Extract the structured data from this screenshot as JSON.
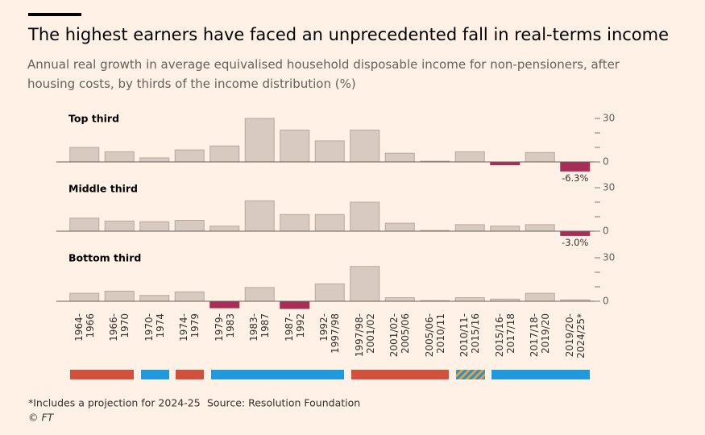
{
  "header": {
    "title": "The highest earners have faced an unprecedented fall in real-terms income",
    "subtitle": "Annual real growth in average equivalised household disposable income for non-pensioners, after housing costs, by thirds of the income distribution (%)"
  },
  "chart_data": [
    {
      "type": "bar",
      "title": "Top third",
      "color": "#d9cac1",
      "negative_color": "#a82d57",
      "values": [
        10,
        7,
        2.8,
        8.3,
        11,
        30,
        22,
        14.5,
        22,
        6,
        0.5,
        7,
        -2,
        6.5,
        -6.3
      ],
      "value_labels": [
        null,
        null,
        null,
        null,
        null,
        null,
        null,
        null,
        null,
        null,
        null,
        null,
        null,
        null,
        "-6.3%"
      ],
      "ylim": [
        -7,
        30
      ],
      "yticks": [
        0,
        30
      ],
      "minor_yticks": [
        10,
        20
      ]
    },
    {
      "type": "bar",
      "title": "Middle third",
      "color": "#d9cac1",
      "negative_color": "#a82d57",
      "values": [
        9,
        7,
        6.5,
        7.5,
        3.5,
        21,
        11.5,
        11.5,
        20,
        5.5,
        0.5,
        4.5,
        3.5,
        4.5,
        -3.0
      ],
      "value_labels": [
        null,
        null,
        null,
        null,
        null,
        null,
        null,
        null,
        null,
        null,
        null,
        null,
        null,
        null,
        "-3.0%"
      ],
      "ylim": [
        -4,
        30
      ],
      "yticks": [
        0,
        30
      ],
      "minor_yticks": [
        10,
        20
      ]
    },
    {
      "type": "bar",
      "title": "Bottom third",
      "color": "#d9cac1",
      "negative_color": "#a82d57",
      "categories": [
        "1964-\n1966",
        "1966-\n1970",
        "1970-\n1974",
        "1974-\n1979",
        "1979-\n1983",
        "1983-\n1987",
        "1987-\n1992",
        "1992-\n1997/98",
        "1997/98-\n2001/02",
        "2001/02-\n2005/06",
        "2005/06-\n2010/11",
        "2010/11-\n2015/16",
        "2015/16-\n2017/18",
        "2017/18-\n2019/20",
        "2019/20-\n2024/25*"
      ],
      "values": [
        5.5,
        7,
        4,
        6.5,
        -4.5,
        9.5,
        -5,
        12,
        24,
        2.5,
        0.5,
        2.5,
        1.5,
        5.5,
        1
      ],
      "ylim": [
        -6,
        30
      ],
      "yticks": [
        0,
        30
      ],
      "minor_yticks": [
        10,
        20
      ]
    }
  ],
  "footer": {
    "note": "*Includes a projection for 2024-25",
    "source": "Source: Resolution Foundation",
    "copyright": "© FT"
  }
}
